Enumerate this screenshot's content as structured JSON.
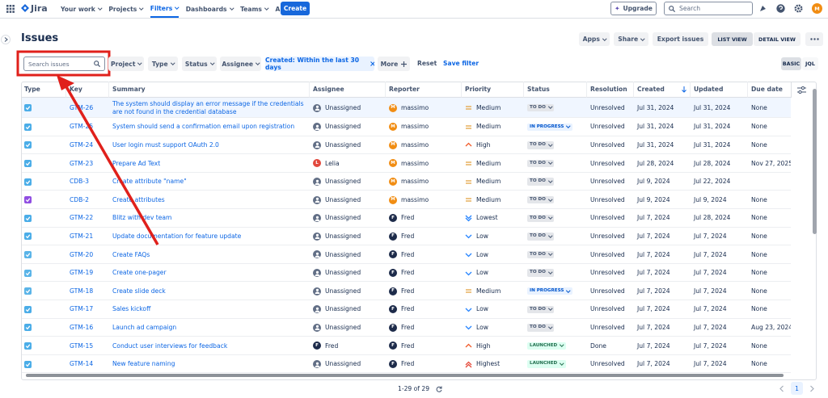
{
  "nav": {
    "logo": "Jira",
    "items": [
      "Your work",
      "Projects",
      "Filters",
      "Dashboards",
      "Teams",
      "Apps"
    ],
    "active": 2,
    "create": "Create",
    "upgrade": "Upgrade",
    "search": "Search",
    "user_initial": "M"
  },
  "header": {
    "title": "Issues",
    "actions": [
      "Apps",
      "Share",
      "Export issues"
    ],
    "views": [
      "LIST VIEW",
      "DETAIL VIEW"
    ]
  },
  "filters": {
    "search_placeholder": "Search issues",
    "dropdowns": [
      "Project",
      "Type",
      "Status",
      "Assignee"
    ],
    "active_filter": "Created: Within the last 30 days",
    "more": "More",
    "reset": "Reset",
    "save": "Save filter",
    "modes": [
      "BASIC",
      "JQL"
    ]
  },
  "people": {
    "massimo": {
      "initial": "M",
      "color": "#f18d13"
    },
    "Lelia": {
      "initial": "L",
      "color": "#e2483d"
    },
    "Fred": {
      "initial": "F",
      "color": "#1d2b4a"
    }
  },
  "priorities": {
    "Medium": {
      "shape": "equal",
      "color": "#e2a03f"
    },
    "High": {
      "shape": "up",
      "color": "#f15b2a"
    },
    "Highest": {
      "shape": "up2",
      "color": "#e5493a"
    },
    "Low": {
      "shape": "down",
      "color": "#2684ff"
    },
    "Lowest": {
      "shape": "down2",
      "color": "#2684ff"
    }
  },
  "statuses": {
    "TO DO": {
      "bg": "#e4e6ea",
      "fg": "#44546f"
    },
    "IN PROGRESS": {
      "bg": "#e9f2ff",
      "fg": "#0055cc"
    },
    "LAUNCHED": {
      "bg": "#dcfff1",
      "fg": "#216e4e"
    }
  },
  "table": {
    "columns": [
      "Type",
      "Key",
      "Summary",
      "Assignee",
      "Reporter",
      "Priority",
      "Status",
      "Resolution",
      "Created",
      "Updated",
      "Due date"
    ],
    "rows": [
      {
        "type_color": "#4bade8",
        "key": "GTM-26",
        "summary": "The system should display an error message if the credentials are not found in the credential database",
        "assignee": "Unassigned",
        "reporter": "massimo",
        "priority": "Medium",
        "status": "TO DO",
        "resolution": "Unresolved",
        "created": "Jul 31, 2024",
        "updated": "Jul 31, 2024",
        "due": "None"
      },
      {
        "type_color": "#4bade8",
        "key": "GTM-25",
        "summary": "System should send a confirmation email upon registration",
        "assignee": "Unassigned",
        "reporter": "massimo",
        "priority": "Medium",
        "status": "IN PROGRESS",
        "resolution": "Unresolved",
        "created": "Jul 31, 2024",
        "updated": "Jul 31, 2024",
        "due": "None"
      },
      {
        "type_color": "#4bade8",
        "key": "GTM-24",
        "summary": "User login must support OAuth 2.0",
        "assignee": "Unassigned",
        "reporter": "massimo",
        "priority": "High",
        "status": "TO DO",
        "resolution": "Unresolved",
        "created": "Jul 31, 2024",
        "updated": "Jul 31, 2024",
        "due": "None"
      },
      {
        "type_color": "#4bade8",
        "key": "GTM-23",
        "summary": "Prepare Ad Text",
        "assignee": "Lelia",
        "reporter": "massimo",
        "priority": "Medium",
        "status": "TO DO",
        "resolution": "Unresolved",
        "created": "Jul 28, 2024",
        "updated": "Jul 28, 2024",
        "due": "Nov 27, 2025"
      },
      {
        "type_color": "#4bade8",
        "key": "CDB-3",
        "summary": "Create attribute \"name\"",
        "assignee": "Unassigned",
        "reporter": "massimo",
        "priority": "Medium",
        "status": "TO DO",
        "resolution": "Unresolved",
        "created": "Jul 9, 2024",
        "updated": "Jul 22, 2024"
      },
      {
        "type_color": "#904ee2",
        "key": "CDB-2",
        "summary": "Create attributes",
        "assignee": "Unassigned",
        "reporter": "massimo",
        "priority": "Medium",
        "status": "TO DO",
        "resolution": "Unresolved",
        "created": "Jul 9, 2024",
        "updated": "Jul 9, 2024",
        "due": "None"
      },
      {
        "type_color": "#4bade8",
        "key": "GTM-22",
        "summary": "Blitz with dev team",
        "assignee": "Unassigned",
        "reporter": "Fred",
        "priority": "Lowest",
        "status": "TO DO",
        "resolution": "Unresolved",
        "created": "Jul 7, 2024",
        "updated": "Jul 28, 2024",
        "due": "None"
      },
      {
        "type_color": "#4bade8",
        "key": "GTM-21",
        "summary": "Update documentation for feature update",
        "assignee": "Unassigned",
        "reporter": "Fred",
        "priority": "Low",
        "status": "TO DO",
        "resolution": "Unresolved",
        "created": "Jul 7, 2024",
        "updated": "Jul 7, 2024",
        "due": "None"
      },
      {
        "type_color": "#5ab4e8",
        "key": "GTM-20",
        "summary": "Create FAQs",
        "assignee": "Unassigned",
        "reporter": "Fred",
        "priority": "Low",
        "status": "TO DO",
        "resolution": "Unresolved",
        "created": "Jul 7, 2024",
        "updated": "Jul 7, 2024",
        "due": "None"
      },
      {
        "type_color": "#5ab4e8",
        "key": "GTM-19",
        "summary": "Create one-pager",
        "assignee": "Unassigned",
        "reporter": "Fred",
        "priority": "Low",
        "status": "TO DO",
        "resolution": "Unresolved",
        "created": "Jul 7, 2024",
        "updated": "Jul 7, 2024",
        "due": "None"
      },
      {
        "type_color": "#5ab4e8",
        "key": "GTM-18",
        "summary": "Create slide deck",
        "assignee": "Unassigned",
        "reporter": "Fred",
        "priority": "Medium",
        "status": "IN PROGRESS",
        "resolution": "Unresolved",
        "created": "Jul 7, 2024",
        "updated": "Jul 7, 2024",
        "due": "None"
      },
      {
        "type_color": "#4bade8",
        "key": "GTM-17",
        "summary": "Sales kickoff",
        "assignee": "Unassigned",
        "reporter": "Fred",
        "priority": "Low",
        "status": "TO DO",
        "resolution": "Unresolved",
        "created": "Jul 7, 2024",
        "updated": "Jul 7, 2024",
        "due": "None"
      },
      {
        "type_color": "#4bade8",
        "key": "GTM-16",
        "summary": "Launch ad campaign",
        "assignee": "Unassigned",
        "reporter": "Fred",
        "priority": "Low",
        "status": "TO DO",
        "resolution": "Unresolved",
        "created": "Jul 7, 2024",
        "updated": "Jul 7, 2024",
        "due": "Aug 23, 2024"
      },
      {
        "type_color": "#4bade8",
        "key": "GTM-15",
        "summary": "Conduct user interviews for feedback",
        "assignee": "Fred",
        "reporter": "Fred",
        "priority": "High",
        "status": "LAUNCHED",
        "resolution": "Done",
        "created": "Jul 7, 2024",
        "updated": "Jul 7, 2024",
        "due": "None"
      },
      {
        "type_color": "#4bade8",
        "key": "GTM-14",
        "summary": "New feature naming",
        "assignee": "Unassigned",
        "reporter": "Fred",
        "priority": "Highest",
        "status": "LAUNCHED",
        "resolution": "Unresolved",
        "created": "Jul 7, 2024",
        "updated": "Jul 7, 2024",
        "due": "None"
      }
    ]
  },
  "pagination": {
    "range": "1-29 of 29",
    "page": 1
  }
}
